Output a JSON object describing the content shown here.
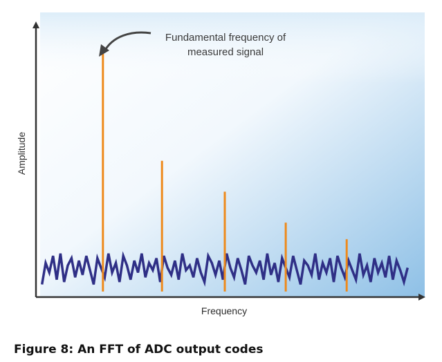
{
  "caption": "Figure 8: An FFT of ADC output codes",
  "colors": {
    "plot_bg_light": "#ffffff",
    "plot_bg_blue": "#8ec0e6",
    "noise": "#2f2f86",
    "harmonics": "#ee8a1c",
    "axis": "#333333"
  },
  "chart_data": {
    "type": "bar",
    "title": "",
    "xlabel": "Frequency",
    "ylabel": "Amplitude",
    "ylim": [
      0,
      100
    ],
    "xlim": [
      0,
      100
    ],
    "grid": false,
    "legend": "none",
    "annotation": {
      "lines": [
        "Fundamental frequency of",
        "measured signal"
      ],
      "target": "fundamental"
    },
    "series": [
      {
        "kind": "harmonics",
        "x": [
          17,
          33,
          50,
          66.5,
          83
        ],
        "values": [
          100,
          55,
          42,
          29,
          22
        ]
      },
      {
        "kind": "noise",
        "x": [
          0.5,
          1.5,
          2.5,
          3.5,
          4.5,
          5.5,
          6.5,
          7.5,
          8.5,
          9.5,
          10.5,
          11.5,
          12.5,
          13.5,
          14.5,
          15.5,
          16.5,
          17.5,
          18.5,
          19.5,
          20.5,
          21.5,
          22.5,
          23.5,
          24.5,
          25.5,
          26.5,
          27.5,
          28.5,
          29.5,
          30.5,
          31.5,
          32.5,
          33.5,
          34.5,
          35.5,
          36.5,
          37.5,
          38.5,
          39.5,
          40.5,
          41.5,
          42.5,
          43.5,
          44.5,
          45.5,
          46.5,
          47.5,
          48.5,
          49.5,
          50.5,
          51.5,
          52.5,
          53.5,
          54.5,
          55.5,
          56.5,
          57.5,
          58.5,
          59.5,
          60.5,
          61.5,
          62.5,
          63.5,
          64.5,
          65.5,
          66.5,
          67.5,
          68.5,
          69.5,
          70.5,
          71.5,
          72.5,
          73.5,
          74.5,
          75.5,
          76.5,
          77.5,
          78.5,
          79.5,
          80.5,
          81.5,
          82.5,
          83.5,
          84.5,
          85.5,
          86.5,
          87.5,
          88.5,
          89.5,
          90.5,
          91.5,
          92.5,
          93.5,
          94.5,
          95.5,
          96.5,
          97.5,
          98.5,
          99.5
        ],
        "values": [
          3,
          12,
          8,
          15,
          5,
          16,
          4,
          11,
          14,
          6,
          13,
          7,
          15,
          9,
          3,
          14,
          10,
          6,
          16,
          8,
          12,
          4,
          15,
          11,
          5,
          13,
          8,
          16,
          6,
          12,
          9,
          14,
          4,
          15,
          10,
          7,
          13,
          5,
          16,
          9,
          11,
          6,
          14,
          8,
          4,
          15,
          12,
          7,
          13,
          5,
          16,
          10,
          6,
          14,
          9,
          3,
          15,
          11,
          8,
          13,
          5,
          16,
          7,
          12,
          4,
          14,
          10,
          6,
          15,
          9,
          3,
          13,
          11,
          7,
          16,
          5,
          12,
          8,
          14,
          4,
          15,
          10,
          6,
          13,
          9,
          5,
          16,
          7,
          11,
          4,
          14,
          8,
          12,
          6,
          15,
          5,
          13,
          9,
          4,
          10
        ]
      }
    ]
  }
}
